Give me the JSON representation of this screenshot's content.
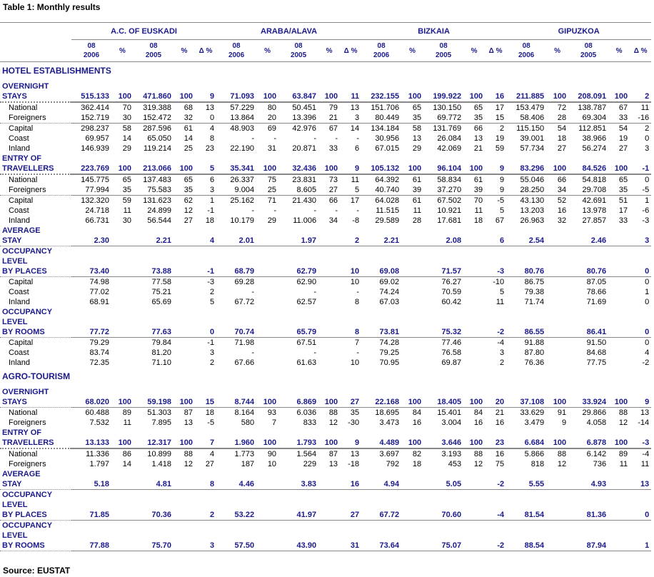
{
  "title": "Table 1: Monthly results",
  "source": "Source: EUSTAT",
  "colors": {
    "header_text": "#1a1a8c",
    "rule": "#888888"
  },
  "groups": [
    "A.C. OF EUSKADI",
    "ARABA/ALAVA",
    "BIZKAIA",
    "GIPUZKOA"
  ],
  "subheaders": [
    [
      "08",
      "2006"
    ],
    [
      "%"
    ],
    [
      "08",
      "2005"
    ],
    [
      "%"
    ],
    [
      "Δ %"
    ]
  ],
  "sections": [
    {
      "title": "HOTEL ESTABLISHMENTS",
      "rows": [
        {
          "type": "total",
          "sep": "thick",
          "label": [
            "OVERNIGHT",
            "STAYS"
          ],
          "values": [
            "515.133",
            "100",
            "471.860",
            "100",
            "9",
            "71.093",
            "100",
            "63.847",
            "100",
            "11",
            "232.155",
            "100",
            "199.922",
            "100",
            "16",
            "211.885",
            "100",
            "208.091",
            "100",
            "2"
          ]
        },
        {
          "type": "sub",
          "label": [
            "National"
          ],
          "values": [
            "362.414",
            "70",
            "319.388",
            "68",
            "13",
            "57.229",
            "80",
            "50.451",
            "79",
            "13",
            "151.706",
            "65",
            "130.150",
            "65",
            "17",
            "153.479",
            "72",
            "138.787",
            "67",
            "11"
          ]
        },
        {
          "type": "sub",
          "sep": "thin",
          "label": [
            "Foreigners"
          ],
          "values": [
            "152.719",
            "30",
            "152.472",
            "32",
            "0",
            "13.864",
            "20",
            "13.396",
            "21",
            "3",
            "80.449",
            "35",
            "69.772",
            "35",
            "15",
            "58.406",
            "28",
            "69.304",
            "33",
            "-16"
          ]
        },
        {
          "type": "sub",
          "label": [
            "Capital"
          ],
          "values": [
            "298.237",
            "58",
            "287.596",
            "61",
            "4",
            "48.903",
            "69",
            "42.976",
            "67",
            "14",
            "134.184",
            "58",
            "131.769",
            "66",
            "2",
            "115.150",
            "54",
            "112.851",
            "54",
            "2"
          ]
        },
        {
          "type": "sub",
          "label": [
            "Coast"
          ],
          "values": [
            "69.957",
            "14",
            "65.050",
            "14",
            "8",
            "-",
            "-",
            "-",
            "-",
            "-",
            "30.956",
            "13",
            "26.084",
            "13",
            "19",
            "39.001",
            "18",
            "38.966",
            "19",
            "0"
          ]
        },
        {
          "type": "sub",
          "label": [
            "Inland"
          ],
          "values": [
            "146.939",
            "29",
            "119.214",
            "25",
            "23",
            "22.190",
            "31",
            "20.871",
            "33",
            "6",
            "67.015",
            "29",
            "42.069",
            "21",
            "59",
            "57.734",
            "27",
            "56.274",
            "27",
            "3"
          ]
        },
        {
          "type": "total",
          "sep": "thick",
          "label": [
            "ENTRY OF",
            "TRAVELLERS"
          ],
          "values": [
            "223.769",
            "100",
            "213.066",
            "100",
            "5",
            "35.341",
            "100",
            "32.436",
            "100",
            "9",
            "105.132",
            "100",
            "96.104",
            "100",
            "9",
            "83.296",
            "100",
            "84.526",
            "100",
            "-1"
          ]
        },
        {
          "type": "sub",
          "label": [
            "National"
          ],
          "values": [
            "145.775",
            "65",
            "137.483",
            "65",
            "6",
            "26.337",
            "75",
            "23.831",
            "73",
            "11",
            "64.392",
            "61",
            "58.834",
            "61",
            "9",
            "55.046",
            "66",
            "54.818",
            "65",
            "0"
          ]
        },
        {
          "type": "sub",
          "sep": "thin",
          "label": [
            "Foreigners"
          ],
          "values": [
            "77.994",
            "35",
            "75.583",
            "35",
            "3",
            "9.004",
            "25",
            "8.605",
            "27",
            "5",
            "40.740",
            "39",
            "37.270",
            "39",
            "9",
            "28.250",
            "34",
            "29.708",
            "35",
            "-5"
          ]
        },
        {
          "type": "sub",
          "label": [
            "Capital"
          ],
          "values": [
            "132.320",
            "59",
            "131.623",
            "62",
            "1",
            "25.162",
            "71",
            "21.430",
            "66",
            "17",
            "64.028",
            "61",
            "67.502",
            "70",
            "-5",
            "43.130",
            "52",
            "42.691",
            "51",
            "1"
          ]
        },
        {
          "type": "sub",
          "label": [
            "Coast"
          ],
          "values": [
            "24.718",
            "11",
            "24.899",
            "12",
            "-1",
            "-",
            "-",
            "-",
            "-",
            "-",
            "11.515",
            "11",
            "10.921",
            "11",
            "5",
            "13.203",
            "16",
            "13.978",
            "17",
            "-6"
          ]
        },
        {
          "type": "sub",
          "label": [
            "Inland"
          ],
          "values": [
            "66.731",
            "30",
            "56.544",
            "27",
            "18",
            "10.179",
            "29",
            "11.006",
            "34",
            "-8",
            "29.589",
            "28",
            "17.681",
            "18",
            "67",
            "26.963",
            "32",
            "27.857",
            "33",
            "-3"
          ]
        },
        {
          "type": "total",
          "sep": "thin",
          "label": [
            "AVERAGE",
            "STAY"
          ],
          "values": [
            "2.30",
            "",
            "2.21",
            "",
            "4",
            "2.01",
            "",
            "1.97",
            "",
            "2",
            "2.21",
            "",
            "2.08",
            "",
            "6",
            "2.54",
            "",
            "2.46",
            "",
            "3"
          ]
        },
        {
          "type": "total",
          "sep": "thin",
          "label": [
            "OCCUPANCY",
            "LEVEL",
            "BY PLACES"
          ],
          "values": [
            "73.40",
            "",
            "73.88",
            "",
            "-1",
            "68.79",
            "",
            "62.79",
            "",
            "10",
            "69.08",
            "",
            "71.57",
            "",
            "-3",
            "80.76",
            "",
            "80.76",
            "",
            "0"
          ]
        },
        {
          "type": "sub",
          "label": [
            "Capital"
          ],
          "values": [
            "74.98",
            "",
            "77.58",
            "",
            "-3",
            "69.28",
            "",
            "62.90",
            "",
            "10",
            "69.02",
            "",
            "76.27",
            "",
            "-10",
            "86.75",
            "",
            "87.05",
            "",
            "0"
          ]
        },
        {
          "type": "sub",
          "label": [
            "Coast"
          ],
          "values": [
            "77.02",
            "",
            "75.21",
            "",
            "2",
            "-",
            "",
            "-",
            "",
            "-",
            "74.24",
            "",
            "70.59",
            "",
            "5",
            "79.38",
            "",
            "78.66",
            "",
            "1"
          ]
        },
        {
          "type": "sub",
          "label": [
            "Inland"
          ],
          "values": [
            "68.91",
            "",
            "65.69",
            "",
            "5",
            "67.72",
            "",
            "62.57",
            "",
            "8",
            "67.03",
            "",
            "60.42",
            "",
            "11",
            "71.74",
            "",
            "71.69",
            "",
            "0"
          ]
        },
        {
          "type": "total",
          "sep": "thin",
          "label": [
            "OCCUPANCY",
            "LEVEL",
            "BY ROOMS"
          ],
          "values": [
            "77.72",
            "",
            "77.63",
            "",
            "0",
            "70.74",
            "",
            "65.79",
            "",
            "8",
            "73.81",
            "",
            "75.32",
            "",
            "-2",
            "86.55",
            "",
            "86.41",
            "",
            "0"
          ]
        },
        {
          "type": "sub",
          "label": [
            "Capital"
          ],
          "values": [
            "79.29",
            "",
            "79.84",
            "",
            "-1",
            "71.98",
            "",
            "67.51",
            "",
            "7",
            "74.28",
            "",
            "77.46",
            "",
            "-4",
            "91.88",
            "",
            "91.50",
            "",
            "0"
          ]
        },
        {
          "type": "sub",
          "label": [
            "Coast"
          ],
          "values": [
            "83.74",
            "",
            "81.20",
            "",
            "3",
            "-",
            "",
            "-",
            "",
            "-",
            "79.25",
            "",
            "76.58",
            "",
            "3",
            "87.80",
            "",
            "84.68",
            "",
            "4"
          ]
        },
        {
          "type": "sub",
          "label": [
            "Inland"
          ],
          "values": [
            "72.35",
            "",
            "71.10",
            "",
            "2",
            "67.66",
            "",
            "61.63",
            "",
            "10",
            "70.95",
            "",
            "69.87",
            "",
            "2",
            "76.36",
            "",
            "77.75",
            "",
            "-2"
          ]
        }
      ]
    },
    {
      "title": "AGRO-TOURISM",
      "rows": [
        {
          "type": "total",
          "sep": "thin",
          "label": [
            "OVERNIGHT",
            "STAYS"
          ],
          "values": [
            "68.020",
            "100",
            "59.198",
            "100",
            "15",
            "8.744",
            "100",
            "6.869",
            "100",
            "27",
            "22.168",
            "100",
            "18.405",
            "100",
            "20",
            "37.108",
            "100",
            "33.924",
            "100",
            "9"
          ]
        },
        {
          "type": "sub",
          "label": [
            "National"
          ],
          "values": [
            "60.488",
            "89",
            "51.303",
            "87",
            "18",
            "8.164",
            "93",
            "6.036",
            "88",
            "35",
            "18.695",
            "84",
            "15.401",
            "84",
            "21",
            "33.629",
            "91",
            "29.866",
            "88",
            "13"
          ]
        },
        {
          "type": "sub",
          "label": [
            "Foreigners"
          ],
          "values": [
            "7.532",
            "11",
            "7.895",
            "13",
            "-5",
            "580",
            "7",
            "833",
            "12",
            "-30",
            "3.473",
            "16",
            "3.004",
            "16",
            "16",
            "3.479",
            "9",
            "4.058",
            "12",
            "-14"
          ]
        },
        {
          "type": "total",
          "sep": "thick",
          "label": [
            "ENTRY OF",
            "TRAVELLERS"
          ],
          "values": [
            "13.133",
            "100",
            "12.317",
            "100",
            "7",
            "1.960",
            "100",
            "1.793",
            "100",
            "9",
            "4.489",
            "100",
            "3.646",
            "100",
            "23",
            "6.684",
            "100",
            "6.878",
            "100",
            "-3"
          ]
        },
        {
          "type": "sub",
          "label": [
            "National"
          ],
          "values": [
            "11.336",
            "86",
            "10.899",
            "88",
            "4",
            "1.773",
            "90",
            "1.564",
            "87",
            "13",
            "3.697",
            "82",
            "3.193",
            "88",
            "16",
            "5.866",
            "88",
            "6.142",
            "89",
            "-4"
          ]
        },
        {
          "type": "sub",
          "label": [
            "Foreigners"
          ],
          "values": [
            "1.797",
            "14",
            "1.418",
            "12",
            "27",
            "187",
            "10",
            "229",
            "13",
            "-18",
            "792",
            "18",
            "453",
            "12",
            "75",
            "818",
            "12",
            "736",
            "11",
            "11"
          ]
        },
        {
          "type": "total",
          "sep": "thin",
          "label": [
            "AVERAGE",
            "STAY"
          ],
          "values": [
            "5.18",
            "",
            "4.81",
            "",
            "8",
            "4.46",
            "",
            "3.83",
            "",
            "16",
            "4.94",
            "",
            "5.05",
            "",
            "-2",
            "5.55",
            "",
            "4.93",
            "",
            "13"
          ]
        },
        {
          "type": "total",
          "sep": "thin",
          "label": [
            "OCCUPANCY",
            "LEVEL",
            "BY PLACES"
          ],
          "values": [
            "71.85",
            "",
            "70.36",
            "",
            "2",
            "53.22",
            "",
            "41.97",
            "",
            "27",
            "67.72",
            "",
            "70.60",
            "",
            "-4",
            "81.54",
            "",
            "81.36",
            "",
            "0"
          ]
        },
        {
          "type": "total",
          "sep": "thin",
          "label": [
            "OCCUPANCY",
            "LEVEL",
            "BY ROOMS"
          ],
          "values": [
            "77.88",
            "",
            "75.70",
            "",
            "3",
            "57.50",
            "",
            "43.90",
            "",
            "31",
            "73.64",
            "",
            "75.07",
            "",
            "-2",
            "88.54",
            "",
            "87.94",
            "",
            "1"
          ]
        }
      ]
    }
  ]
}
